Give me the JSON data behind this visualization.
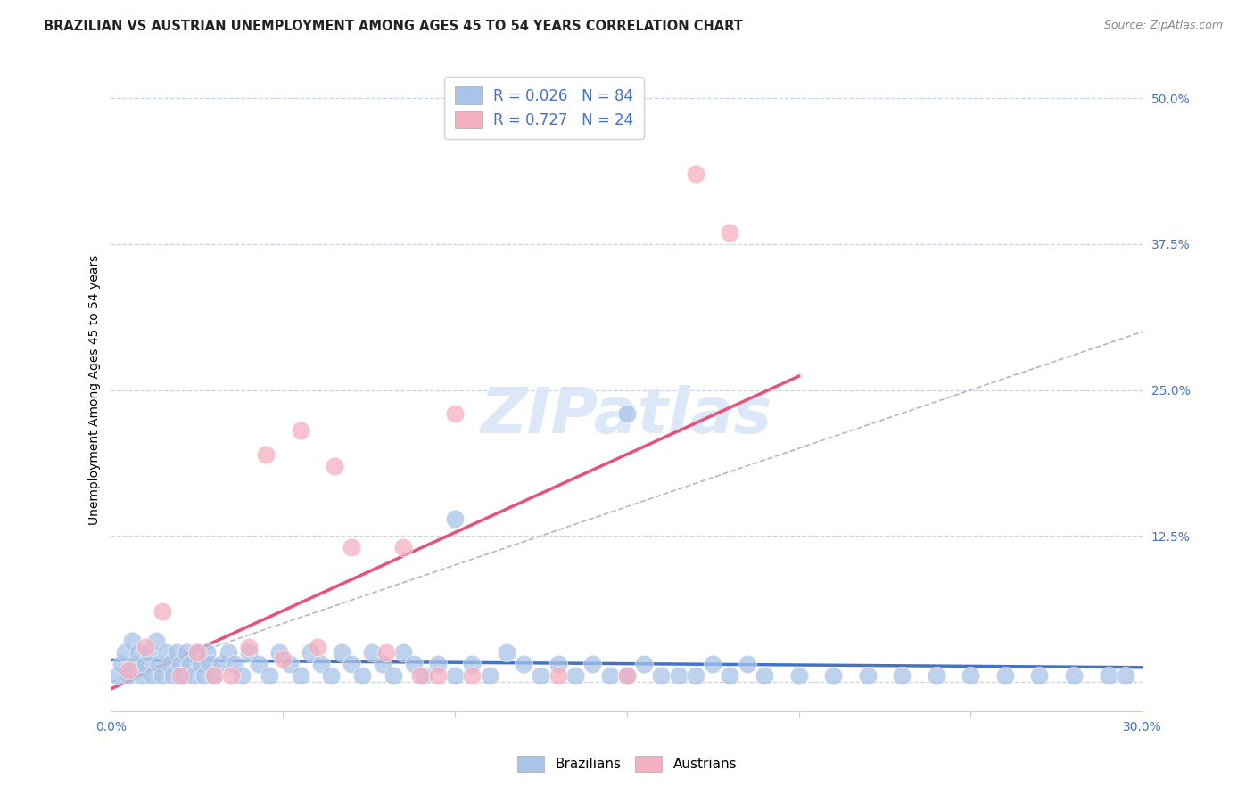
{
  "title": "BRAZILIAN VS AUSTRIAN UNEMPLOYMENT AMONG AGES 45 TO 54 YEARS CORRELATION CHART",
  "source": "Source: ZipAtlas.com",
  "ylabel": "Unemployment Among Ages 45 to 54 years",
  "xlim": [
    0.0,
    0.3
  ],
  "ylim": [
    -0.025,
    0.525
  ],
  "ytick_vals": [
    0.0,
    0.125,
    0.25,
    0.375,
    0.5
  ],
  "ytick_labels": [
    "",
    "12.5%",
    "25.0%",
    "37.5%",
    "50.0%"
  ],
  "xtick_vals": [
    0.0,
    0.05,
    0.1,
    0.15,
    0.2,
    0.25,
    0.3
  ],
  "xtick_labels": [
    "0.0%",
    "",
    "",
    "",
    "",
    "",
    "30.0%"
  ],
  "blue_R": 0.026,
  "blue_N": 84,
  "pink_R": 0.727,
  "pink_N": 24,
  "blue_color": "#a8c4e8",
  "pink_color": "#f4afc0",
  "blue_line_color": "#4472c4",
  "pink_line_color": "#e8527a",
  "ref_line_color": "#b0b8c8",
  "background_color": "#ffffff",
  "grid_color": "#c8d4e8",
  "watermark_color": "#dce8f8",
  "legend_text_color": "#4472c4",
  "title_color": "#222222",
  "source_color": "#888888",
  "blue_x": [
    0.002,
    0.003,
    0.004,
    0.005,
    0.006,
    0.007,
    0.008,
    0.009,
    0.01,
    0.011,
    0.012,
    0.013,
    0.014,
    0.015,
    0.016,
    0.017,
    0.018,
    0.019,
    0.02,
    0.021,
    0.022,
    0.023,
    0.024,
    0.025,
    0.026,
    0.027,
    0.028,
    0.029,
    0.03,
    0.032,
    0.034,
    0.036,
    0.038,
    0.04,
    0.043,
    0.046,
    0.049,
    0.052,
    0.055,
    0.058,
    0.061,
    0.064,
    0.067,
    0.07,
    0.073,
    0.076,
    0.079,
    0.082,
    0.085,
    0.088,
    0.091,
    0.095,
    0.1,
    0.105,
    0.11,
    0.115,
    0.12,
    0.125,
    0.13,
    0.135,
    0.14,
    0.145,
    0.15,
    0.155,
    0.16,
    0.165,
    0.17,
    0.175,
    0.18,
    0.185,
    0.19,
    0.2,
    0.21,
    0.22,
    0.23,
    0.24,
    0.25,
    0.26,
    0.27,
    0.28,
    0.29,
    0.295,
    0.15,
    0.1
  ],
  "blue_y": [
    0.005,
    0.015,
    0.025,
    0.005,
    0.035,
    0.015,
    0.025,
    0.005,
    0.015,
    0.025,
    0.005,
    0.035,
    0.015,
    0.005,
    0.025,
    0.015,
    0.005,
    0.025,
    0.015,
    0.005,
    0.025,
    0.015,
    0.005,
    0.025,
    0.015,
    0.005,
    0.025,
    0.015,
    0.005,
    0.015,
    0.025,
    0.015,
    0.005,
    0.025,
    0.015,
    0.005,
    0.025,
    0.015,
    0.005,
    0.025,
    0.015,
    0.005,
    0.025,
    0.015,
    0.005,
    0.025,
    0.015,
    0.005,
    0.025,
    0.015,
    0.005,
    0.015,
    0.005,
    0.015,
    0.005,
    0.025,
    0.015,
    0.005,
    0.015,
    0.005,
    0.015,
    0.005,
    0.005,
    0.015,
    0.005,
    0.005,
    0.005,
    0.015,
    0.005,
    0.015,
    0.005,
    0.005,
    0.005,
    0.005,
    0.005,
    0.005,
    0.005,
    0.005,
    0.005,
    0.005,
    0.005,
    0.005,
    0.23,
    0.14
  ],
  "pink_x": [
    0.005,
    0.01,
    0.015,
    0.02,
    0.025,
    0.03,
    0.035,
    0.04,
    0.045,
    0.05,
    0.055,
    0.06,
    0.065,
    0.07,
    0.08,
    0.085,
    0.09,
    0.095,
    0.1,
    0.105,
    0.13,
    0.15,
    0.17,
    0.18
  ],
  "pink_y": [
    0.01,
    0.03,
    0.06,
    0.005,
    0.025,
    0.005,
    0.005,
    0.03,
    0.195,
    0.02,
    0.215,
    0.03,
    0.185,
    0.115,
    0.025,
    0.115,
    0.005,
    0.005,
    0.23,
    0.005,
    0.005,
    0.005,
    0.435,
    0.385
  ]
}
